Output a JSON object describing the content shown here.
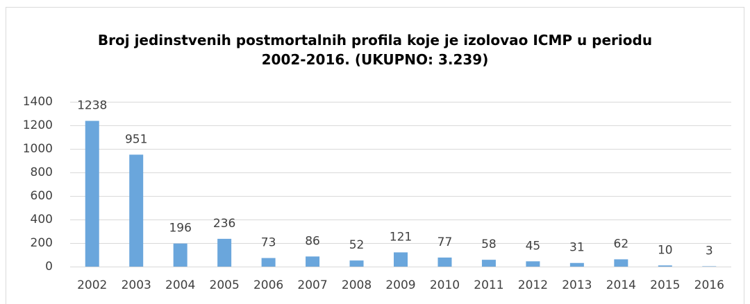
{
  "chart_data": {
    "type": "bar",
    "title": "Broj jedinstvenih postmortalnih profila koje je izolovao ICMP u periodu 2002-2016. (UKUPNO: 3.239)",
    "categories": [
      "2002",
      "2003",
      "2004",
      "2005",
      "2006",
      "2007",
      "2008",
      "2009",
      "2010",
      "2011",
      "2012",
      "2013",
      "2014",
      "2015",
      "2016"
    ],
    "values": [
      1238,
      951,
      196,
      236,
      73,
      86,
      52,
      121,
      77,
      58,
      45,
      31,
      62,
      10,
      3
    ],
    "color": "#6aa6dc",
    "ylim": [
      0,
      1400
    ],
    "yticks": [
      0,
      200,
      400,
      600,
      800,
      1000,
      1200,
      1400
    ],
    "grid": true
  }
}
